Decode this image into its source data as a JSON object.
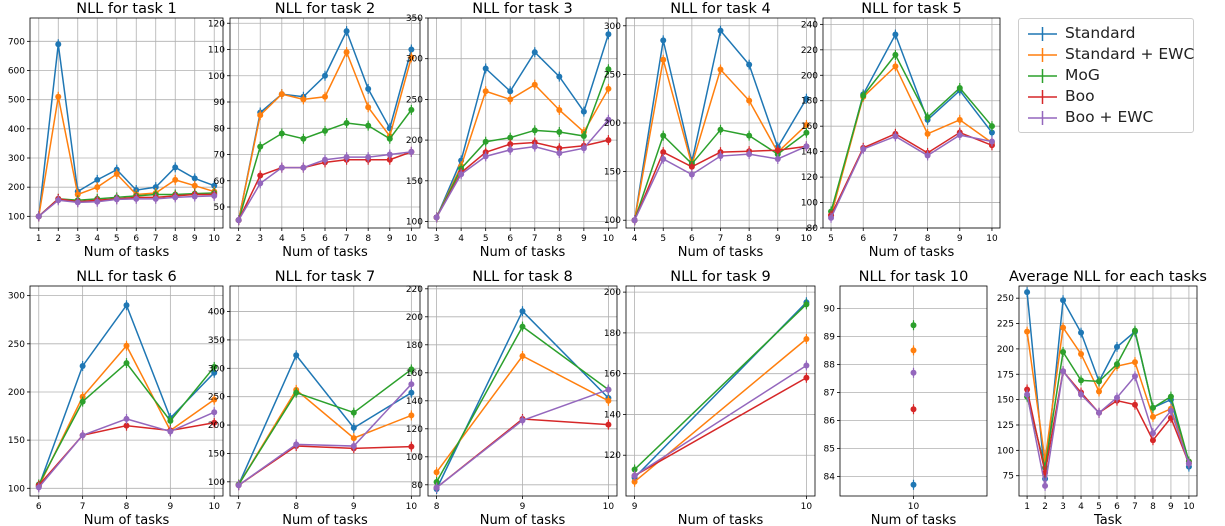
{
  "legend": {
    "items": [
      {
        "label": "Standard",
        "color": "#1f77b4"
      },
      {
        "label": "Standard + EWC",
        "color": "#ff7f0e"
      },
      {
        "label": "MoG",
        "color": "#2ca02c"
      },
      {
        "label": "Boo",
        "color": "#d62728"
      },
      {
        "label": "Boo + EWC",
        "color": "#9467bd"
      }
    ]
  },
  "chart_data": [
    {
      "type": "line",
      "title": "NLL for task 1",
      "xlabel": "Num of tasks",
      "ylabel": "",
      "x": [
        1,
        2,
        3,
        4,
        5,
        6,
        7,
        8,
        9,
        10
      ],
      "ylim": [
        60,
        780
      ],
      "yticks": [
        100,
        200,
        300,
        400,
        500,
        600,
        700
      ],
      "grid": true,
      "series": [
        {
          "name": "Standard",
          "values": [
            100,
            690,
            185,
            225,
            260,
            190,
            200,
            268,
            230,
            205
          ]
        },
        {
          "name": "Standard + EWC",
          "values": [
            100,
            510,
            175,
            200,
            245,
            175,
            180,
            225,
            205,
            185
          ]
        },
        {
          "name": "MoG",
          "values": [
            100,
            160,
            155,
            160,
            165,
            170,
            175,
            175,
            178,
            180
          ]
        },
        {
          "name": "Boo",
          "values": [
            100,
            160,
            150,
            155,
            160,
            165,
            165,
            170,
            175,
            175
          ]
        },
        {
          "name": "Boo + EWC",
          "values": [
            100,
            155,
            148,
            150,
            158,
            160,
            160,
            165,
            168,
            170
          ]
        }
      ]
    },
    {
      "type": "line",
      "title": "NLL for task 2",
      "xlabel": "Num of tasks",
      "ylabel": "",
      "x": [
        2,
        3,
        4,
        5,
        6,
        7,
        8,
        9,
        10
      ],
      "ylim": [
        42,
        122
      ],
      "yticks": [
        50,
        60,
        70,
        80,
        90,
        100,
        110,
        120
      ],
      "grid": true,
      "series": [
        {
          "name": "Standard",
          "values": [
            45,
            86,
            93,
            92,
            100,
            117,
            95,
            80,
            110
          ]
        },
        {
          "name": "Standard + EWC",
          "values": [
            45,
            85,
            93,
            91,
            92,
            109,
            88,
            77,
            107
          ]
        },
        {
          "name": "MoG",
          "values": [
            45,
            73,
            78,
            76,
            79,
            82,
            81,
            76,
            87
          ]
        },
        {
          "name": "Boo",
          "values": [
            45,
            62,
            65,
            65,
            67,
            68,
            68,
            68,
            71
          ]
        },
        {
          "name": "Boo + EWC",
          "values": [
            45,
            59,
            65,
            65,
            68,
            69,
            69,
            70,
            71
          ]
        }
      ]
    },
    {
      "type": "line",
      "title": "NLL for task 3",
      "xlabel": "Num of tasks",
      "ylabel": "",
      "x": [
        3,
        4,
        5,
        6,
        7,
        8,
        9,
        10
      ],
      "ylim": [
        92,
        350
      ],
      "yticks": [
        100,
        150,
        200,
        250,
        300,
        350
      ],
      "grid": true,
      "series": [
        {
          "name": "Standard",
          "values": [
            105,
            175,
            288,
            260,
            308,
            278,
            235,
            330
          ]
        },
        {
          "name": "Standard + EWC",
          "values": [
            105,
            168,
            260,
            250,
            268,
            237,
            210,
            263
          ]
        },
        {
          "name": "MoG",
          "values": [
            105,
            165,
            198,
            203,
            212,
            210,
            205,
            287
          ]
        },
        {
          "name": "Boo",
          "values": [
            105,
            160,
            185,
            195,
            197,
            190,
            193,
            200
          ]
        },
        {
          "name": "Boo + EWC",
          "values": [
            105,
            158,
            180,
            188,
            192,
            184,
            190,
            225
          ]
        }
      ]
    },
    {
      "type": "line",
      "title": "NLL for task 4",
      "xlabel": "Num of tasks",
      "ylabel": "",
      "x": [
        4,
        5,
        6,
        7,
        8,
        9,
        10
      ],
      "ylim": [
        92,
        308
      ],
      "yticks": [
        100,
        150,
        200,
        250,
        300
      ],
      "grid": true,
      "series": [
        {
          "name": "Standard",
          "values": [
            100,
            285,
            160,
            295,
            260,
            175,
            225
          ]
        },
        {
          "name": "Standard + EWC",
          "values": [
            100,
            265,
            157,
            255,
            223,
            170,
            198
          ]
        },
        {
          "name": "MoG",
          "values": [
            100,
            187,
            158,
            193,
            187,
            168,
            190
          ]
        },
        {
          "name": "Boo",
          "values": [
            100,
            170,
            155,
            170,
            171,
            172,
            176
          ]
        },
        {
          "name": "Boo + EWC",
          "values": [
            100,
            163,
            147,
            166,
            168,
            163,
            176
          ]
        }
      ]
    },
    {
      "type": "line",
      "title": "NLL for task 5",
      "xlabel": "Num of tasks",
      "ylabel": "",
      "x": [
        5,
        6,
        7,
        8,
        9,
        10
      ],
      "ylim": [
        80,
        245
      ],
      "yticks": [
        80,
        100,
        120,
        140,
        160,
        180,
        200,
        220,
        240
      ],
      "grid": true,
      "series": [
        {
          "name": "Standard",
          "values": [
            90,
            185,
            232,
            165,
            188,
            155
          ]
        },
        {
          "name": "Standard + EWC",
          "values": [
            90,
            183,
            207,
            154,
            165,
            147
          ]
        },
        {
          "name": "MoG",
          "values": [
            93,
            184,
            216,
            167,
            190,
            160
          ]
        },
        {
          "name": "Boo",
          "values": [
            90,
            143,
            154,
            139,
            155,
            145
          ]
        },
        {
          "name": "Boo + EWC",
          "values": [
            88,
            142,
            152,
            137,
            153,
            148
          ]
        }
      ]
    },
    {
      "type": "line",
      "title": "NLL for task 6",
      "xlabel": "Num of tasks",
      "ylabel": "",
      "x": [
        6,
        7,
        8,
        9,
        10
      ],
      "ylim": [
        92,
        310
      ],
      "yticks": [
        100,
        150,
        200,
        250,
        300
      ],
      "grid": true,
      "series": [
        {
          "name": "Standard",
          "values": [
            102,
            227,
            290,
            173,
            220
          ]
        },
        {
          "name": "Standard + EWC",
          "values": [
            102,
            195,
            248,
            160,
            192
          ]
        },
        {
          "name": "MoG",
          "values": [
            104,
            190,
            230,
            170,
            226
          ]
        },
        {
          "name": "Boo",
          "values": [
            103,
            155,
            165,
            160,
            168
          ]
        },
        {
          "name": "Boo + EWC",
          "values": [
            101,
            155,
            172,
            159,
            179
          ]
        }
      ]
    },
    {
      "type": "line",
      "title": "NLL for task 7",
      "xlabel": "Num of tasks",
      "ylabel": "",
      "x": [
        7,
        8,
        9,
        10
      ],
      "ylim": [
        75,
        445
      ],
      "yticks": [
        100,
        150,
        200,
        250,
        300,
        350,
        400
      ],
      "grid": true,
      "series": [
        {
          "name": "Standard",
          "values": [
            95,
            323,
            195,
            257
          ]
        },
        {
          "name": "Standard + EWC",
          "values": [
            95,
            262,
            177,
            217
          ]
        },
        {
          "name": "MoG",
          "values": [
            95,
            257,
            222,
            298
          ]
        },
        {
          "name": "Boo",
          "values": [
            94,
            163,
            159,
            162
          ]
        },
        {
          "name": "Boo + EWC",
          "values": [
            94,
            166,
            163,
            272
          ]
        }
      ]
    },
    {
      "type": "line",
      "title": "NLL for task 8",
      "xlabel": "Num of tasks",
      "ylabel": "",
      "x": [
        8,
        9,
        10
      ],
      "ylim": [
        72,
        222
      ],
      "yticks": [
        80,
        100,
        120,
        140,
        160,
        180,
        200,
        220
      ],
      "grid": true,
      "series": [
        {
          "name": "Standard",
          "values": [
            77,
            204,
            142
          ]
        },
        {
          "name": "Standard + EWC",
          "values": [
            89,
            172,
            140
          ]
        },
        {
          "name": "MoG",
          "values": [
            82,
            193,
            148
          ]
        },
        {
          "name": "Boo",
          "values": [
            78,
            127,
            123
          ]
        },
        {
          "name": "Boo + EWC",
          "values": [
            78,
            126,
            148
          ]
        }
      ]
    },
    {
      "type": "line",
      "title": "NLL for task 9",
      "xlabel": "Num of tasks",
      "ylabel": "",
      "x": [
        9,
        10
      ],
      "ylim": [
        100,
        203
      ],
      "yticks": [
        120,
        140,
        160,
        180,
        200
      ],
      "grid": true,
      "series": [
        {
          "name": "Standard",
          "values": [
            109,
            195
          ]
        },
        {
          "name": "Standard + EWC",
          "values": [
            107,
            177
          ]
        },
        {
          "name": "MoG",
          "values": [
            113,
            194
          ]
        },
        {
          "name": "Boo",
          "values": [
            110,
            158
          ]
        },
        {
          "name": "Boo + EWC",
          "values": [
            110,
            164
          ]
        }
      ]
    },
    {
      "type": "line",
      "title": "NLL for task 10",
      "xlabel": "Num of tasks",
      "ylabel": "",
      "x": [
        10
      ],
      "ylim": [
        83.3,
        90.8
      ],
      "yticks": [
        84,
        85,
        86,
        87,
        88,
        89,
        90
      ],
      "grid": true,
      "series": [
        {
          "name": "Standard",
          "values": [
            83.7
          ]
        },
        {
          "name": "Standard + EWC",
          "values": [
            88.5
          ]
        },
        {
          "name": "MoG",
          "values": [
            89.4
          ]
        },
        {
          "name": "Boo",
          "values": [
            86.4
          ]
        },
        {
          "name": "Boo + EWC",
          "values": [
            87.7
          ]
        }
      ]
    },
    {
      "type": "line",
      "title": "Average NLL for each tasks",
      "xlabel": "Task",
      "ylabel": "",
      "x": [
        1,
        2,
        3,
        4,
        5,
        6,
        7,
        8,
        9,
        10
      ],
      "ylim": [
        55,
        262
      ],
      "yticks": [
        75,
        100,
        125,
        150,
        175,
        200,
        225,
        250
      ],
      "grid": true,
      "series": [
        {
          "name": "Standard",
          "values": [
            256,
            72,
            248,
            216,
            168,
            202,
            217,
            142,
            150,
            84
          ]
        },
        {
          "name": "Standard + EWC",
          "values": [
            217,
            90,
            221,
            195,
            158,
            183,
            187,
            133,
            141,
            89
          ]
        },
        {
          "name": "MoG",
          "values": [
            153,
            83,
            197,
            169,
            168,
            185,
            218,
            142,
            153,
            89
          ]
        },
        {
          "name": "Boo",
          "values": [
            160,
            78,
            178,
            157,
            137,
            149,
            145,
            110,
            132,
            87
          ]
        },
        {
          "name": "Boo + EWC",
          "values": [
            155,
            65,
            178,
            155,
            137,
            152,
            173,
            117,
            139,
            87
          ]
        }
      ]
    }
  ]
}
